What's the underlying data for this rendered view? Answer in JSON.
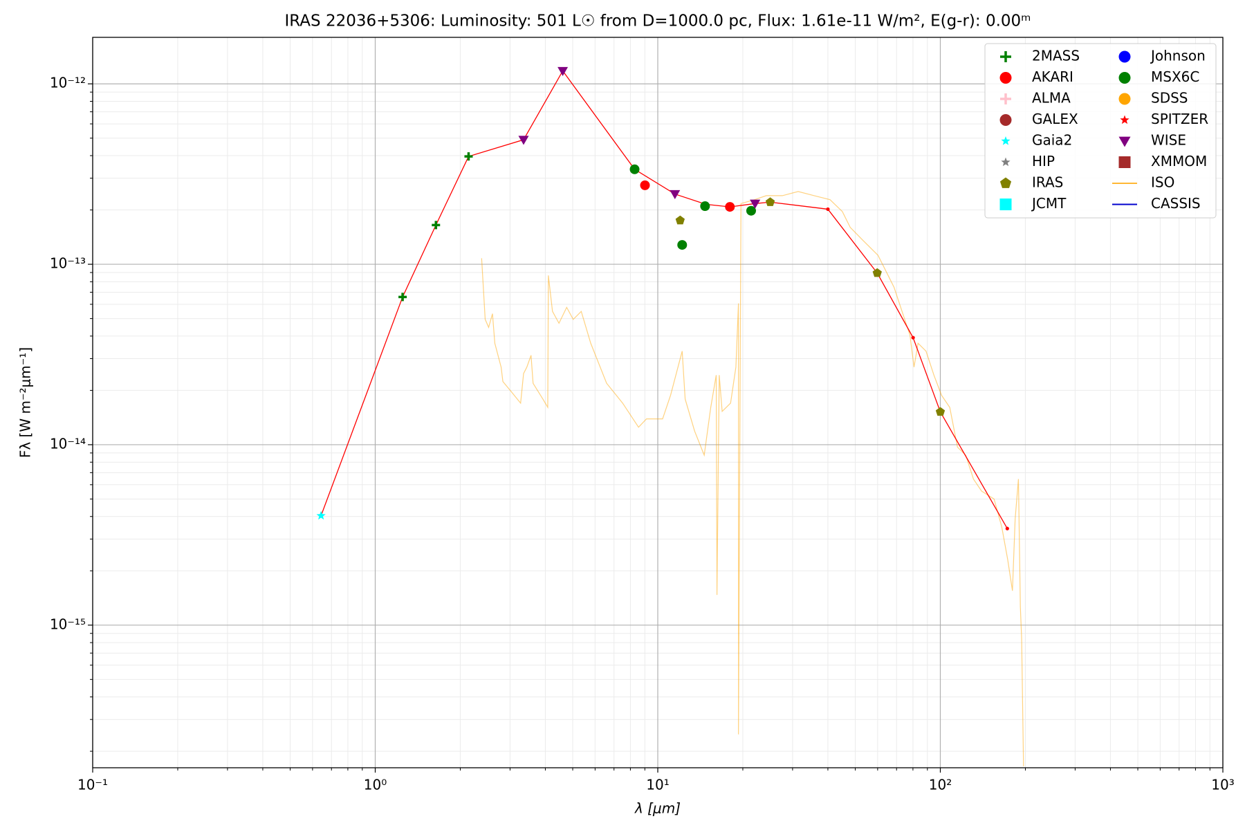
{
  "chart_data": {
    "type": "scatter",
    "title": "IRAS 22036+5306:  Luminosity: 501 L☉ from D=1000.0 pc, Flux: 1.61e-11 W/m², E(g-r): 0.00ᵐ",
    "x_label": "λ [μm]",
    "y_label": "Fλ [W m⁻²μm⁻¹]",
    "xscale": "log",
    "yscale": "log",
    "xlim": [
      0.1,
      1000
    ],
    "ylim": [
      1.62e-16,
      1.81e-12
    ],
    "xticks": [
      {
        "value": 0.1,
        "label": "10⁻¹"
      },
      {
        "value": 1,
        "label": "10⁰"
      },
      {
        "value": 10,
        "label": "10¹"
      },
      {
        "value": 100,
        "label": "10²"
      },
      {
        "value": 1000,
        "label": "10³"
      }
    ],
    "yticks": [
      {
        "value": 1e-15,
        "label": "10⁻¹⁵"
      },
      {
        "value": 1e-14,
        "label": "10⁻¹⁴"
      },
      {
        "value": 1e-13,
        "label": "10⁻¹³"
      },
      {
        "value": 1e-12,
        "label": "10⁻¹²"
      }
    ],
    "grid": true,
    "minor_grid": true,
    "legend": "upper right",
    "legend_columns": 2,
    "sed_line": {
      "color": "#ff0000",
      "x": [
        0.643,
        1.25,
        1.64,
        2.14,
        3.35,
        4.61,
        8.28,
        11.5,
        14.8,
        18.0,
        22.1,
        25.0,
        40.0,
        59.8,
        80.1,
        100,
        172.6
      ],
      "values": [
        4.04e-15,
        6.59e-14,
        1.65e-13,
        3.96e-13,
        4.9e-13,
        1.18e-12,
        3.36e-13,
        2.45e-13,
        2.15e-13,
        2.08e-13,
        2.17e-13,
        2.21e-13,
        2.02e-13,
        8.94e-14,
        3.92e-14,
        1.52e-14,
        3.43e-15
      ]
    },
    "series": [
      {
        "name": "2MASS",
        "color": "#008000",
        "marker": "plus",
        "x": [
          1.25,
          1.64,
          2.14
        ],
        "values": [
          6.59e-14,
          1.65e-13,
          3.96e-13
        ]
      },
      {
        "name": "AKARI",
        "color": "#ff0000",
        "marker": "circle",
        "x": [
          9.01,
          18.0
        ],
        "values": [
          2.74e-13,
          2.08e-13
        ]
      },
      {
        "name": "ALMA",
        "color": "#ffc0cb",
        "marker": "plus",
        "x": [],
        "values": []
      },
      {
        "name": "GALEX",
        "color": "#a52a2a",
        "marker": "circle",
        "x": [],
        "values": []
      },
      {
        "name": "Gaia2",
        "color": "#00ffff",
        "marker": "star",
        "x": [
          0.643
        ],
        "values": [
          4.04e-15
        ]
      },
      {
        "name": "HIP",
        "color": "#808080",
        "marker": "star",
        "x": [],
        "values": []
      },
      {
        "name": "IRAS",
        "color": "#808000",
        "marker": "pentagon",
        "x": [
          12.0,
          25.0,
          59.8,
          100
        ],
        "values": [
          1.75e-13,
          2.21e-13,
          8.94e-14,
          1.52e-14
        ]
      },
      {
        "name": "JCMT",
        "color": "#00ffff",
        "marker": "square",
        "x": [],
        "values": []
      },
      {
        "name": "Johnson",
        "color": "#0000ff",
        "marker": "circle",
        "x": [],
        "values": []
      },
      {
        "name": "MSX6C",
        "color": "#008000",
        "marker": "circle",
        "x": [
          8.28,
          12.2,
          14.7,
          21.4
        ],
        "values": [
          3.36e-13,
          1.28e-13,
          2.1e-13,
          1.98e-13
        ]
      },
      {
        "name": "SDSS",
        "color": "#ffa500",
        "marker": "circle",
        "x": [],
        "values": []
      },
      {
        "name": "SPITZER",
        "color": "#ff0000",
        "marker": "star",
        "x": [],
        "values": []
      },
      {
        "name": "WISE",
        "color": "#800080",
        "marker": "triangle_down",
        "x": [
          3.35,
          4.61,
          11.5,
          22.1
        ],
        "values": [
          4.9e-13,
          1.18e-12,
          2.45e-13,
          2.17e-13
        ]
      },
      {
        "name": "XMMOM",
        "color": "#a52a2a",
        "marker": "square",
        "x": [],
        "values": []
      },
      {
        "name": "ISO",
        "color": "#ffa500",
        "marker": "line",
        "opacity": 0.5,
        "x": [
          2.38,
          2.45,
          2.52,
          2.6,
          2.65,
          2.79,
          2.83,
          3.02,
          3.27,
          3.35,
          3.44,
          3.56,
          3.62,
          3.92,
          4.08,
          4.1,
          4.24,
          4.47,
          4.76,
          5.02,
          5.36,
          5.79,
          6.59,
          7.51,
          8.55,
          9.12,
          10.4,
          11.1,
          12.2,
          12.5,
          13.5,
          14.6,
          15.4,
          16.1,
          16.2,
          16.5,
          16.9,
          18.1,
          18.9,
          19.3,
          19.3,
          19.7,
          22.0,
          24.2,
          27.6,
          31.4,
          35.8,
          40.7,
          45.0,
          48.0,
          52.9,
          60.2,
          64.3,
          68.6,
          73.2,
          78.1,
          80.7,
          83.4,
          89.0,
          94.9,
          101,
          108,
          115,
          123,
          131,
          140,
          155,
          165,
          173,
          180,
          184,
          189,
          192,
          194,
          197
        ],
        "values": [
          1.08e-13,
          4.95e-14,
          4.47e-14,
          5.32e-14,
          3.65e-14,
          2.69e-14,
          2.24e-14,
          1.98e-14,
          1.7e-14,
          2.48e-14,
          2.69e-14,
          3.13e-14,
          2.19e-14,
          1.79e-14,
          1.61e-14,
          8.67e-14,
          5.48e-14,
          4.71e-14,
          5.77e-14,
          4.95e-14,
          5.48e-14,
          3.65e-14,
          2.19e-14,
          1.7e-14,
          1.25e-14,
          1.39e-14,
          1.39e-14,
          1.88e-14,
          3.3e-14,
          1.79e-14,
          1.19e-14,
          8.75e-15,
          1.61e-14,
          2.43e-14,
          1.47e-15,
          2.43e-14,
          1.53e-14,
          1.7e-14,
          2.69e-14,
          6.07e-14,
          2.48e-16,
          2.17e-13,
          2.28e-13,
          2.4e-13,
          2.4e-13,
          2.53e-13,
          2.4e-13,
          2.28e-13,
          1.96e-13,
          1.6e-13,
          1.37e-13,
          1.12e-13,
          9.12e-14,
          7.45e-14,
          5.48e-14,
          4.04e-14,
          2.69e-14,
          3.65e-14,
          3.3e-14,
          2.43e-14,
          1.88e-14,
          1.61e-14,
          9.7e-15,
          8.75e-15,
          6.45e-15,
          5.53e-15,
          5e-15,
          3.5e-15,
          2.33e-15,
          1.55e-15,
          3.87e-15,
          6.45e-15,
          1.26e-15,
          8.41e-16,
          1.65e-16
        ]
      },
      {
        "name": "CASSIS",
        "color": "#0000cd",
        "marker": "line",
        "x": [],
        "values": []
      }
    ]
  }
}
